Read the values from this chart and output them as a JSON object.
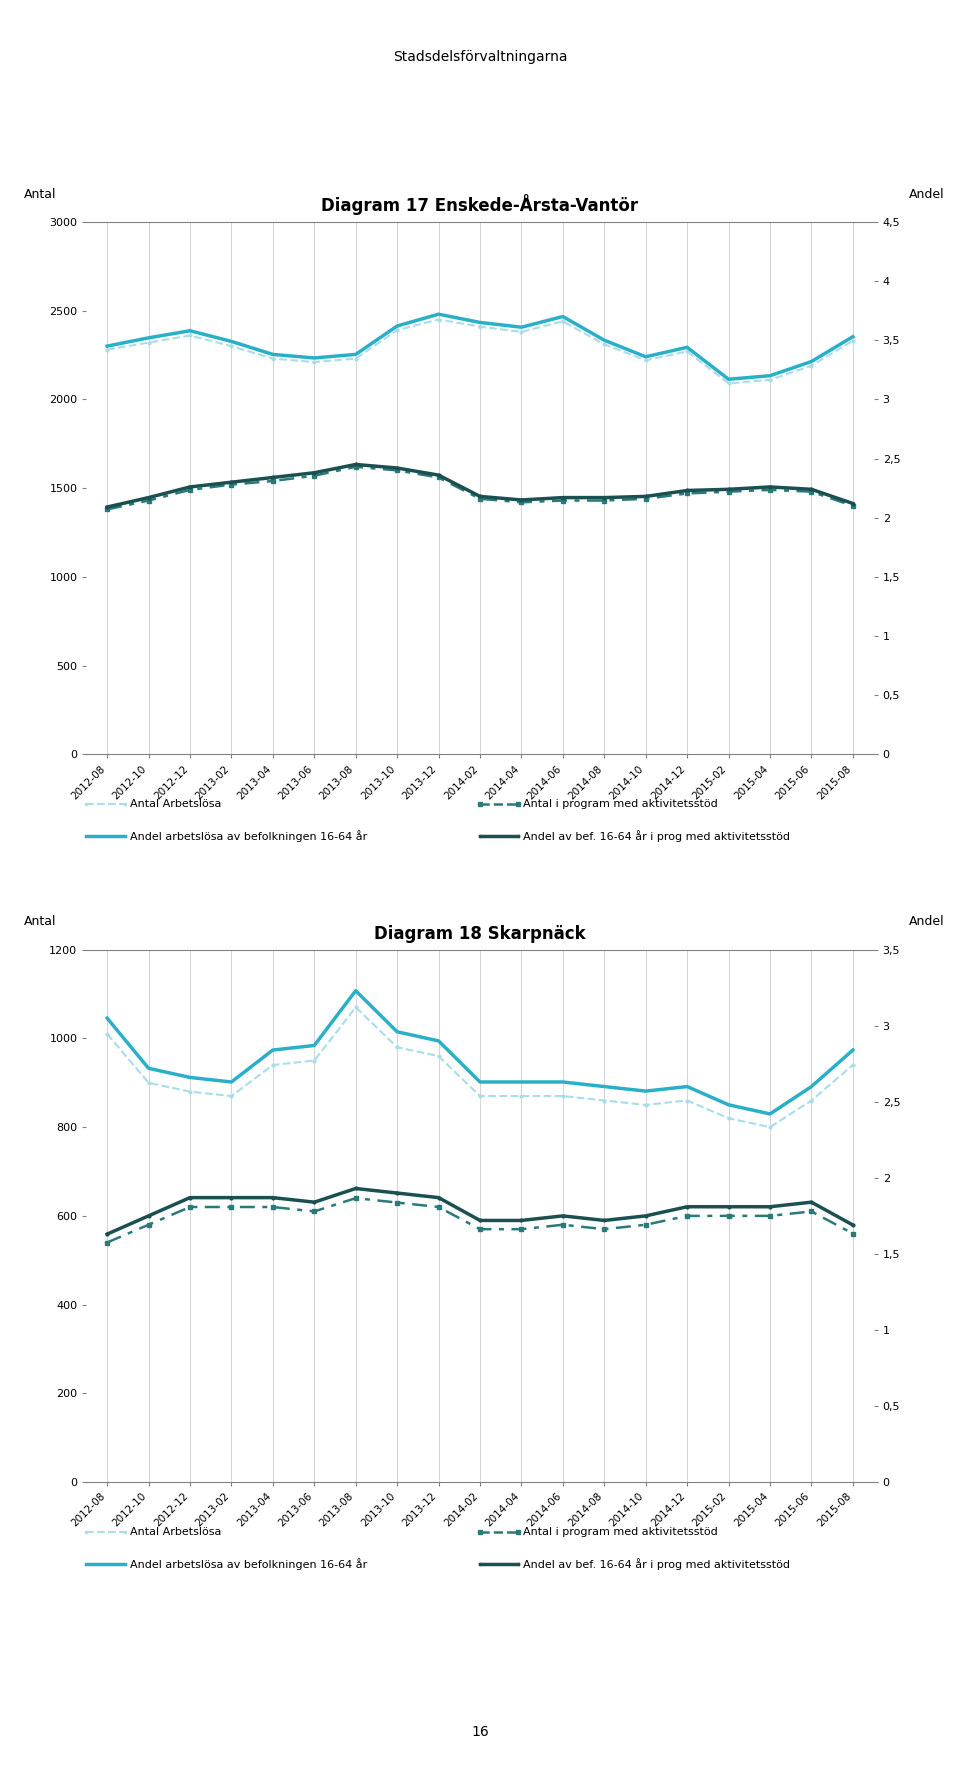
{
  "page_title": "Stadsdelsförvaltningarna",
  "page_number": "16",
  "x_labels": [
    "2012-08",
    "2012-10",
    "2012-12",
    "2013-02",
    "2013-04",
    "2013-06",
    "2013-08",
    "2013-10",
    "2013-12",
    "2014-02",
    "2014-04",
    "2014-06",
    "2014-08",
    "2014-10",
    "2014-12",
    "2015-02",
    "2015-04",
    "2015-06",
    "2015-08"
  ],
  "chart1": {
    "title": "Diagram 17 Enskede-Årsta-Vantör",
    "ylabel_left": "Antal",
    "ylabel_right": "Andel",
    "ylim_left": [
      0,
      3000
    ],
    "ylim_right": [
      0,
      4.5
    ],
    "yticks_left": [
      0,
      500,
      1000,
      1500,
      2000,
      2500,
      3000
    ],
    "yticks_right": [
      0,
      0.5,
      1,
      1.5,
      2,
      2.5,
      3,
      3.5,
      4,
      4.5
    ],
    "antal_arbetslosa": [
      2280,
      2320,
      2360,
      2300,
      2230,
      2210,
      2230,
      2390,
      2450,
      2410,
      2380,
      2440,
      2310,
      2220,
      2270,
      2090,
      2110,
      2190,
      2330
    ],
    "antal_program": [
      1380,
      1430,
      1490,
      1520,
      1540,
      1570,
      1620,
      1600,
      1560,
      1440,
      1420,
      1430,
      1430,
      1440,
      1470,
      1480,
      1490,
      1480,
      1400
    ],
    "andel_arbetslosa": [
      3.45,
      3.52,
      3.58,
      3.49,
      3.38,
      3.35,
      3.38,
      3.62,
      3.72,
      3.65,
      3.61,
      3.7,
      3.5,
      3.36,
      3.44,
      3.17,
      3.2,
      3.32,
      3.53
    ],
    "andel_program": [
      2.09,
      2.17,
      2.26,
      2.3,
      2.34,
      2.38,
      2.45,
      2.42,
      2.36,
      2.18,
      2.15,
      2.17,
      2.17,
      2.18,
      2.23,
      2.24,
      2.26,
      2.24,
      2.12
    ],
    "color_antal_arbetslosa": "#a8dde9",
    "color_antal_program": "#2a7a7a",
    "color_andel_arbetslosa": "#29b0c8",
    "color_andel_program": "#1a5050"
  },
  "chart2": {
    "title": "Diagram 18 Skarpnäck",
    "ylabel_left": "Antal",
    "ylabel_right": "Andel",
    "ylim_left": [
      0,
      1200
    ],
    "ylim_right": [
      0,
      3.5
    ],
    "yticks_left": [
      0,
      200,
      400,
      600,
      800,
      1000,
      1200
    ],
    "yticks_right": [
      0,
      0.5,
      1,
      1.5,
      2,
      2.5,
      3,
      3.5
    ],
    "antal_arbetslosa": [
      1010,
      900,
      880,
      870,
      940,
      950,
      1070,
      980,
      960,
      870,
      870,
      870,
      860,
      850,
      860,
      820,
      800,
      860,
      940
    ],
    "antal_program": [
      540,
      580,
      620,
      620,
      620,
      610,
      640,
      630,
      620,
      570,
      570,
      580,
      570,
      580,
      600,
      600,
      600,
      610,
      560
    ],
    "andel_arbetslosa": [
      3.05,
      2.72,
      2.66,
      2.63,
      2.84,
      2.87,
      3.23,
      2.96,
      2.9,
      2.63,
      2.63,
      2.63,
      2.6,
      2.57,
      2.6,
      2.48,
      2.42,
      2.6,
      2.84
    ],
    "andel_program": [
      1.63,
      1.75,
      1.87,
      1.87,
      1.87,
      1.84,
      1.93,
      1.9,
      1.87,
      1.72,
      1.72,
      1.75,
      1.72,
      1.75,
      1.81,
      1.81,
      1.81,
      1.84,
      1.69
    ],
    "color_antal_arbetslosa": "#a8dde9",
    "color_antal_program": "#2a7a7a",
    "color_andel_arbetslosa": "#29b0c8",
    "color_andel_program": "#1a5050"
  },
  "legend_labels": [
    "Antal Arbetslösa",
    "Antal i program med aktivitetsstöd",
    "Andel arbetslösa av befolkningen 16-64 år",
    "Andel av bef. 16-64 år i prog med aktivitetsstöd"
  ]
}
